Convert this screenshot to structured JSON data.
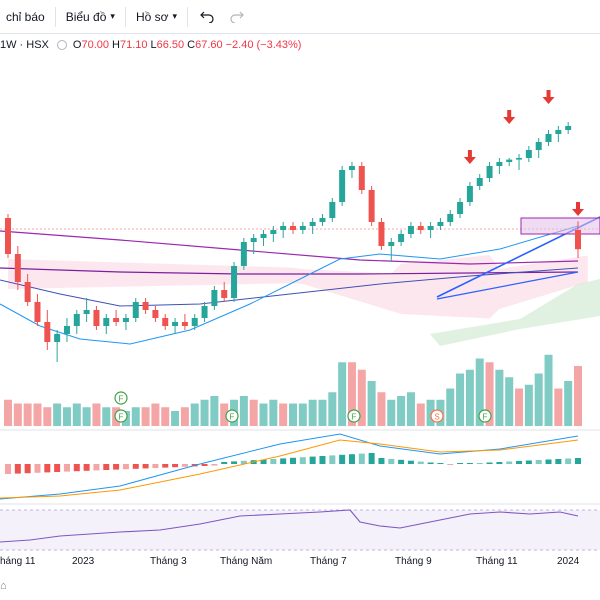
{
  "toolbar": {
    "indicators_label": "chỉ báo",
    "chart_menu_label": "Biểu đồ",
    "profile_menu_label": "Hồ sơ",
    "undo_icon": "undo-icon",
    "redo_icon": "redo-icon"
  },
  "legend": {
    "symbol": "1W · HSX",
    "open_label": "O",
    "open": "70.00",
    "high_label": "H",
    "high": "71.10",
    "low_label": "L",
    "low": "66.50",
    "close_label": "C",
    "close": "67.60",
    "change": "−2.40 (−3.43%)"
  },
  "xaxis": {
    "labels": [
      "háng 11",
      "2023",
      "Tháng 3",
      "Tháng Năm",
      "Tháng 7",
      "Tháng 9",
      "Tháng 11",
      "2024"
    ]
  },
  "colors": {
    "up": "#26a69a",
    "down": "#ef5350",
    "arrow": "#e53935",
    "zone": "#e1bee7",
    "ma_blue": "#2196f3",
    "ma_purple": "#9c27b0",
    "trendline": "#2962ff",
    "rsi": "#7e57c2",
    "macd": "#2196f3",
    "signal": "#ff9800"
  },
  "chart_data": {
    "type": "candlestick",
    "candles": [
      [
        71.5,
        72.0,
        66.5,
        67.0
      ],
      [
        67.0,
        68.0,
        62.5,
        63.5
      ],
      [
        63.5,
        64.5,
        60.5,
        61.0
      ],
      [
        61.0,
        62.0,
        58.0,
        58.5
      ],
      [
        58.5,
        60.0,
        55.0,
        56.0
      ],
      [
        56.0,
        57.5,
        53.5,
        57.0
      ],
      [
        57.0,
        59.0,
        56.0,
        58.0
      ],
      [
        58.0,
        60.0,
        57.0,
        59.5
      ],
      [
        59.5,
        61.5,
        58.5,
        60.0
      ],
      [
        60.0,
        60.5,
        57.5,
        58.0
      ],
      [
        58.0,
        59.5,
        57.0,
        59.0
      ],
      [
        59.0,
        60.0,
        58.0,
        58.5
      ],
      [
        58.5,
        59.5,
        57.5,
        59.0
      ],
      [
        59.0,
        61.5,
        58.5,
        61.0
      ],
      [
        61.0,
        61.5,
        59.5,
        60.0
      ],
      [
        60.0,
        60.5,
        58.5,
        59.0
      ],
      [
        59.0,
        59.5,
        57.5,
        58.0
      ],
      [
        58.0,
        59.0,
        57.0,
        58.5
      ],
      [
        58.5,
        59.5,
        57.5,
        58.0
      ],
      [
        58.0,
        59.5,
        57.5,
        59.0
      ],
      [
        59.0,
        61.0,
        58.5,
        60.5
      ],
      [
        60.5,
        63.0,
        60.0,
        62.5
      ],
      [
        62.5,
        63.5,
        61.0,
        61.5
      ],
      [
        61.5,
        66.0,
        61.0,
        65.5
      ],
      [
        65.5,
        69.0,
        65.0,
        68.5
      ],
      [
        68.5,
        69.5,
        67.0,
        69.0
      ],
      [
        69.0,
        70.0,
        68.0,
        69.5
      ],
      [
        69.5,
        70.5,
        68.5,
        70.0
      ],
      [
        70.0,
        71.0,
        69.0,
        70.5
      ],
      [
        70.5,
        71.0,
        69.5,
        70.0
      ],
      [
        70.0,
        71.0,
        69.5,
        70.5
      ],
      [
        70.5,
        71.5,
        69.5,
        71.0
      ],
      [
        71.0,
        72.0,
        70.5,
        71.5
      ],
      [
        71.5,
        74.0,
        71.0,
        73.5
      ],
      [
        73.5,
        78.0,
        73.0,
        77.5
      ],
      [
        77.5,
        78.5,
        76.5,
        78.0
      ],
      [
        78.0,
        78.5,
        74.5,
        75.0
      ],
      [
        75.0,
        75.5,
        70.5,
        71.0
      ],
      [
        71.0,
        71.5,
        67.5,
        68.0
      ],
      [
        68.0,
        69.0,
        66.0,
        68.5
      ],
      [
        68.5,
        70.0,
        68.0,
        69.5
      ],
      [
        69.5,
        71.0,
        69.0,
        70.5
      ],
      [
        70.5,
        71.0,
        69.5,
        70.0
      ],
      [
        70.0,
        71.0,
        69.0,
        70.5
      ],
      [
        70.5,
        71.5,
        70.0,
        71.0
      ],
      [
        71.0,
        72.5,
        70.5,
        72.0
      ],
      [
        72.0,
        74.0,
        71.5,
        73.5
      ],
      [
        73.5,
        76.0,
        73.0,
        75.5
      ],
      [
        75.5,
        77.0,
        75.0,
        76.5
      ],
      [
        76.5,
        78.5,
        76.0,
        78.0
      ],
      [
        78.0,
        79.0,
        77.0,
        78.5
      ],
      [
        78.5,
        79.0,
        78.0,
        78.8
      ],
      [
        78.8,
        79.5,
        77.5,
        79.0
      ],
      [
        79.0,
        80.5,
        78.5,
        80.0
      ],
      [
        80.0,
        81.5,
        79.0,
        81.0
      ],
      [
        81.0,
        82.5,
        80.5,
        82.0
      ],
      [
        82.0,
        83.0,
        81.0,
        82.5
      ],
      [
        82.5,
        83.5,
        82.0,
        83.0
      ],
      [
        70.0,
        71.1,
        66.5,
        67.6
      ]
    ],
    "volume": [
      [
        0.35,
        "down"
      ],
      [
        0.3,
        "down"
      ],
      [
        0.3,
        "down"
      ],
      [
        0.3,
        "down"
      ],
      [
        0.25,
        "down"
      ],
      [
        0.3,
        "up"
      ],
      [
        0.25,
        "up"
      ],
      [
        0.3,
        "up"
      ],
      [
        0.25,
        "up"
      ],
      [
        0.3,
        "down"
      ],
      [
        0.25,
        "up"
      ],
      [
        0.25,
        "down"
      ],
      [
        0.2,
        "up"
      ],
      [
        0.25,
        "up"
      ],
      [
        0.25,
        "down"
      ],
      [
        0.3,
        "down"
      ],
      [
        0.25,
        "down"
      ],
      [
        0.2,
        "up"
      ],
      [
        0.25,
        "down"
      ],
      [
        0.3,
        "up"
      ],
      [
        0.35,
        "up"
      ],
      [
        0.4,
        "up"
      ],
      [
        0.3,
        "down"
      ],
      [
        0.35,
        "up"
      ],
      [
        0.4,
        "up"
      ],
      [
        0.35,
        "down"
      ],
      [
        0.3,
        "up"
      ],
      [
        0.35,
        "up"
      ],
      [
        0.3,
        "down"
      ],
      [
        0.3,
        "up"
      ],
      [
        0.3,
        "up"
      ],
      [
        0.35,
        "up"
      ],
      [
        0.35,
        "up"
      ],
      [
        0.45,
        "up"
      ],
      [
        0.85,
        "up"
      ],
      [
        0.85,
        "down"
      ],
      [
        0.75,
        "down"
      ],
      [
        0.6,
        "up"
      ],
      [
        0.45,
        "down"
      ],
      [
        0.35,
        "up"
      ],
      [
        0.4,
        "up"
      ],
      [
        0.45,
        "up"
      ],
      [
        0.3,
        "down"
      ],
      [
        0.35,
        "up"
      ],
      [
        0.35,
        "up"
      ],
      [
        0.5,
        "up"
      ],
      [
        0.7,
        "up"
      ],
      [
        0.75,
        "up"
      ],
      [
        0.9,
        "up"
      ],
      [
        0.85,
        "down"
      ],
      [
        0.75,
        "up"
      ],
      [
        0.65,
        "up"
      ],
      [
        0.5,
        "down"
      ],
      [
        0.55,
        "up"
      ],
      [
        0.7,
        "up"
      ],
      [
        0.95,
        "up"
      ],
      [
        0.5,
        "down"
      ],
      [
        0.6,
        "up"
      ],
      [
        0.8,
        "down"
      ]
    ],
    "signals": [
      {
        "index": 29,
        "label": "F"
      },
      {
        "index": 29,
        "label": "F"
      },
      {
        "index": 57,
        "label": "F"
      },
      {
        "index": 87,
        "label": "F"
      },
      {
        "index": 107,
        "label": "S"
      },
      {
        "index": 120,
        "label": "F"
      }
    ],
    "arrows_at": [
      47,
      51,
      55,
      58
    ],
    "ylim": [
      52,
      92
    ]
  }
}
